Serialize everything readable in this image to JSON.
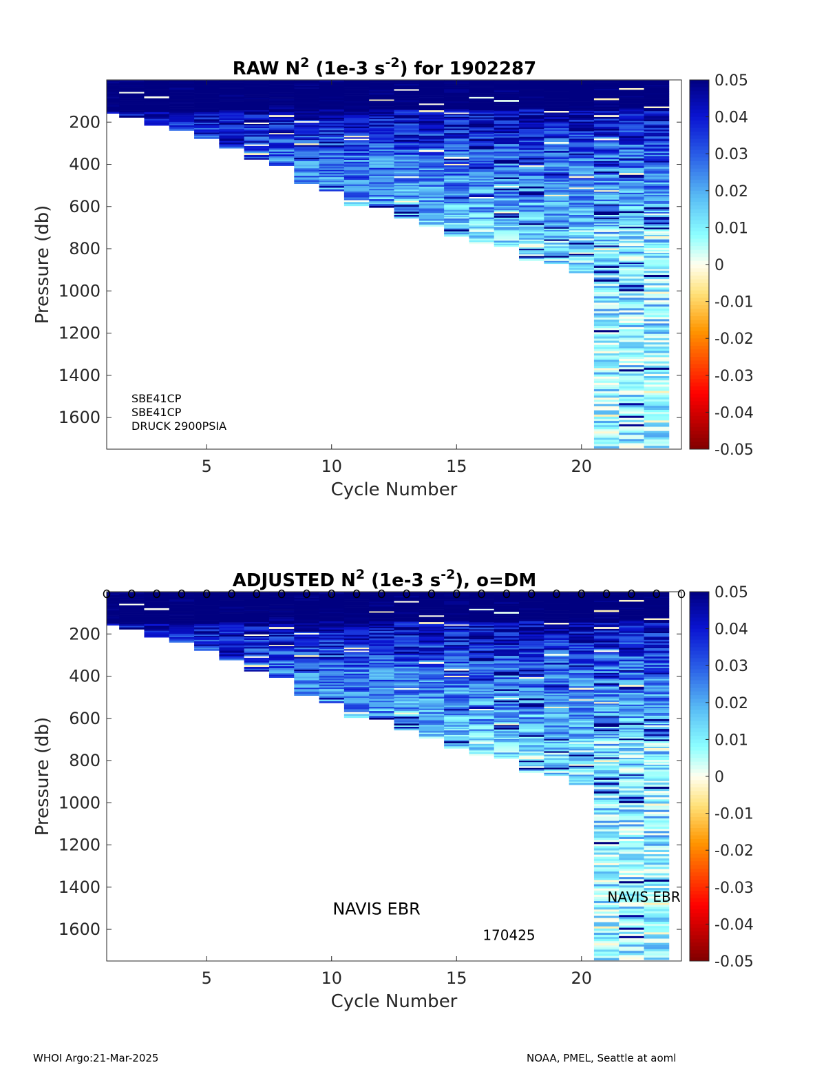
{
  "chart_data": [
    {
      "type": "heatmap",
      "title": "RAW N² (1e-3 s⁻²) for 1902287",
      "title_parts": {
        "pre": "RAW N",
        "sup1": "2",
        "mid": " (1e-3 s",
        "sup2": "-2",
        "post": ") for 1902287"
      },
      "xlabel": "Cycle Number",
      "ylabel": "Pressure (db)",
      "xlim": [
        1,
        24
      ],
      "ylim": [
        1750,
        0
      ],
      "y_reversed": true,
      "xticks": [
        5,
        10,
        15,
        20
      ],
      "yticks": [
        200,
        400,
        600,
        800,
        1000,
        1200,
        1400,
        1600
      ],
      "cycles": [
        1,
        2,
        3,
        4,
        5,
        6,
        7,
        8,
        9,
        10,
        11,
        12,
        13,
        14,
        15,
        16,
        17,
        18,
        19,
        20,
        21,
        22,
        23
      ],
      "max_pressure": [
        155,
        170,
        210,
        235,
        275,
        320,
        375,
        405,
        485,
        525,
        590,
        605,
        650,
        690,
        740,
        775,
        790,
        850,
        870,
        915,
        1740,
        1740,
        1740
      ],
      "color_scale": {
        "min": -0.05,
        "max": 0.05,
        "ticks": [
          0.05,
          0.04,
          0.03,
          0.02,
          0.01,
          0,
          -0.01,
          -0.02,
          -0.03,
          -0.04,
          -0.05
        ],
        "colormap": "jet-white-center"
      },
      "annotations": [
        "SBE41CP",
        "SBE41CP",
        "DRUCK 2900PSIA"
      ]
    },
    {
      "type": "heatmap",
      "title": "ADJUSTED N² (1e-3 s⁻²), o=DM",
      "title_parts": {
        "pre": "ADJUSTED N",
        "sup1": "2",
        "mid": " (1e-3 s",
        "sup2": "-2",
        "post": "), o=DM"
      },
      "xlabel": "Cycle Number",
      "ylabel": "Pressure (db)",
      "xlim": [
        1,
        24
      ],
      "ylim": [
        1750,
        0
      ],
      "y_reversed": true,
      "xticks": [
        5,
        10,
        15,
        20
      ],
      "yticks": [
        200,
        400,
        600,
        800,
        1000,
        1200,
        1400,
        1600
      ],
      "cycles": [
        1,
        2,
        3,
        4,
        5,
        6,
        7,
        8,
        9,
        10,
        11,
        12,
        13,
        14,
        15,
        16,
        17,
        18,
        19,
        20,
        21,
        22,
        23
      ],
      "max_pressure": [
        155,
        170,
        210,
        235,
        275,
        320,
        375,
        405,
        485,
        525,
        590,
        605,
        650,
        690,
        740,
        775,
        790,
        850,
        870,
        915,
        1740,
        1740,
        1740
      ],
      "dm_marker": "o",
      "dm_cycles": [
        1,
        2,
        3,
        4,
        5,
        6,
        7,
        8,
        9,
        10,
        11,
        12,
        13,
        14,
        15,
        16,
        17,
        18,
        19,
        20,
        21,
        22,
        23,
        24
      ],
      "color_scale": {
        "min": -0.05,
        "max": 0.05,
        "ticks": [
          0.05,
          0.04,
          0.03,
          0.02,
          0.01,
          0,
          -0.01,
          -0.02,
          -0.03,
          -0.04,
          -0.05
        ],
        "colormap": "jet-white-center"
      },
      "annotations": [
        {
          "text": "NAVIS EBR",
          "x": 11.8,
          "y": 1530
        },
        {
          "text": "170425",
          "x": 17.1,
          "y": 1650
        },
        {
          "text": "NAVIS EBR",
          "x": 22.5,
          "y": 1470
        }
      ]
    }
  ],
  "footer": {
    "left": "WHOI Argo:21-Mar-2025",
    "right": "NOAA, PMEL, Seattle at aoml"
  }
}
